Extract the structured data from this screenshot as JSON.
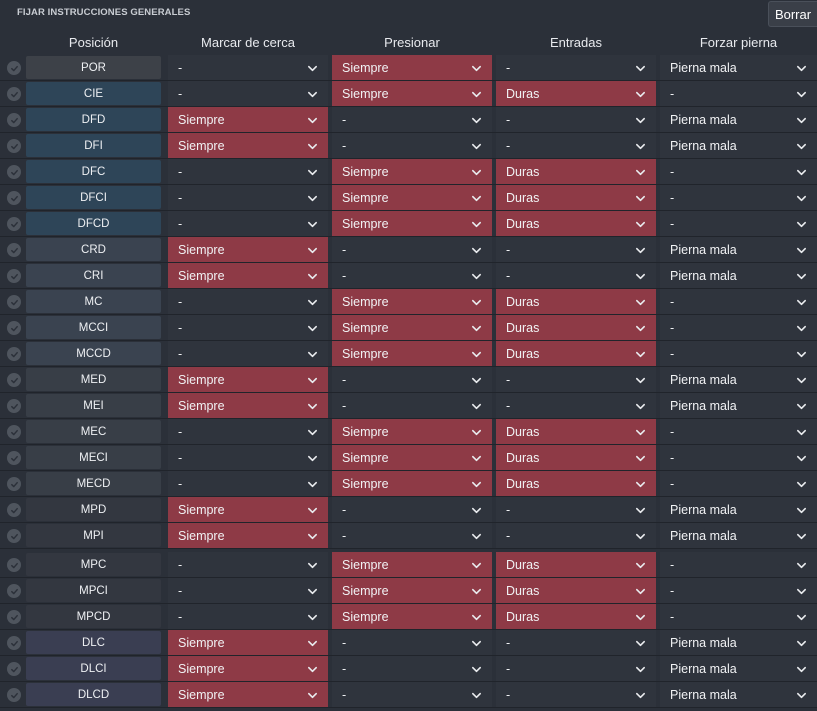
{
  "title": "FIJAR INSTRUCCIONES GENERALES",
  "clear_button": "Borrar",
  "columns": [
    "Posición",
    "Marcar de cerca",
    "Presionar",
    "Entradas",
    "Forzar pierna"
  ],
  "colors": {
    "highlight": "#8e3a46",
    "cell_bg": "#2f343d",
    "gk": "#3d4148",
    "defender": "#2e4558",
    "wingback": "#3a4350",
    "midfielder": "#383e47",
    "attacking_mid": "#333740",
    "striker": "#3a3e52"
  },
  "rows": [
    {
      "pos": "POR",
      "group": "gk",
      "marcar": "-",
      "presionar": "Siempre",
      "entradas": "-",
      "forzar": "Pierna mala"
    },
    {
      "pos": "CIE",
      "group": "defender",
      "marcar": "-",
      "presionar": "Siempre",
      "entradas": "Duras",
      "forzar": "-"
    },
    {
      "pos": "DFD",
      "group": "defender",
      "marcar": "Siempre",
      "presionar": "-",
      "entradas": "-",
      "forzar": "Pierna mala"
    },
    {
      "pos": "DFI",
      "group": "defender",
      "marcar": "Siempre",
      "presionar": "-",
      "entradas": "-",
      "forzar": "Pierna mala"
    },
    {
      "pos": "DFC",
      "group": "defender",
      "marcar": "-",
      "presionar": "Siempre",
      "entradas": "Duras",
      "forzar": "-"
    },
    {
      "pos": "DFCI",
      "group": "defender",
      "marcar": "-",
      "presionar": "Siempre",
      "entradas": "Duras",
      "forzar": "-"
    },
    {
      "pos": "DFCD",
      "group": "defender",
      "marcar": "-",
      "presionar": "Siempre",
      "entradas": "Duras",
      "forzar": "-"
    },
    {
      "pos": "CRD",
      "group": "wingback",
      "marcar": "Siempre",
      "presionar": "-",
      "entradas": "-",
      "forzar": "Pierna mala"
    },
    {
      "pos": "CRI",
      "group": "wingback",
      "marcar": "Siempre",
      "presionar": "-",
      "entradas": "-",
      "forzar": "Pierna mala"
    },
    {
      "pos": "MC",
      "group": "wingback",
      "marcar": "-",
      "presionar": "Siempre",
      "entradas": "Duras",
      "forzar": "-"
    },
    {
      "pos": "MCCI",
      "group": "wingback",
      "marcar": "-",
      "presionar": "Siempre",
      "entradas": "Duras",
      "forzar": "-"
    },
    {
      "pos": "MCCD",
      "group": "wingback",
      "marcar": "-",
      "presionar": "Siempre",
      "entradas": "Duras",
      "forzar": "-"
    },
    {
      "pos": "MED",
      "group": "midfielder",
      "marcar": "Siempre",
      "presionar": "-",
      "entradas": "-",
      "forzar": "Pierna mala"
    },
    {
      "pos": "MEI",
      "group": "midfielder",
      "marcar": "Siempre",
      "presionar": "-",
      "entradas": "-",
      "forzar": "Pierna mala"
    },
    {
      "pos": "MEC",
      "group": "midfielder",
      "marcar": "-",
      "presionar": "Siempre",
      "entradas": "Duras",
      "forzar": "-"
    },
    {
      "pos": "MECI",
      "group": "midfielder",
      "marcar": "-",
      "presionar": "Siempre",
      "entradas": "Duras",
      "forzar": "-"
    },
    {
      "pos": "MECD",
      "group": "midfielder",
      "marcar": "-",
      "presionar": "Siempre",
      "entradas": "Duras",
      "forzar": "-"
    },
    {
      "pos": "MPD",
      "group": "attacking_mid",
      "marcar": "Siempre",
      "presionar": "-",
      "entradas": "-",
      "forzar": "Pierna mala"
    },
    {
      "pos": "MPI",
      "group": "attacking_mid",
      "marcar": "Siempre",
      "presionar": "-",
      "entradas": "-",
      "forzar": "Pierna mala"
    },
    {
      "pos": "MPC",
      "group": "attacking_mid",
      "marcar": "-",
      "presionar": "Siempre",
      "entradas": "Duras",
      "forzar": "-"
    },
    {
      "pos": "MPCI",
      "group": "attacking_mid",
      "marcar": "-",
      "presionar": "Siempre",
      "entradas": "Duras",
      "forzar": "-"
    },
    {
      "pos": "MPCD",
      "group": "attacking_mid",
      "marcar": "-",
      "presionar": "Siempre",
      "entradas": "Duras",
      "forzar": "-"
    },
    {
      "pos": "DLC",
      "group": "striker",
      "marcar": "Siempre",
      "presionar": "-",
      "entradas": "-",
      "forzar": "Pierna mala"
    },
    {
      "pos": "DLCI",
      "group": "striker",
      "marcar": "Siempre",
      "presionar": "-",
      "entradas": "-",
      "forzar": "Pierna mala"
    },
    {
      "pos": "DLCD",
      "group": "striker",
      "marcar": "Siempre",
      "presionar": "-",
      "entradas": "-",
      "forzar": "Pierna mala"
    }
  ]
}
